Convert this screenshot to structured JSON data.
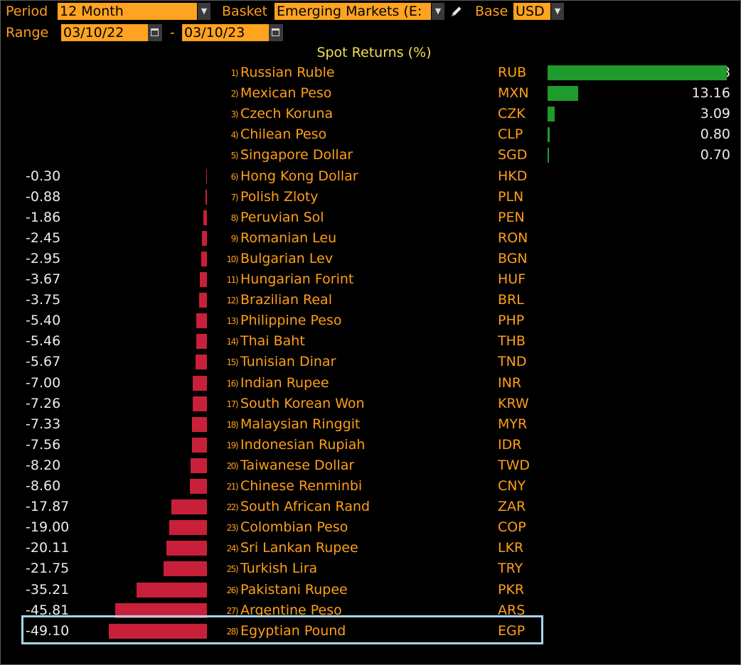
{
  "controls": {
    "period_label": "Period",
    "period_value": "12 Month",
    "basket_label": "Basket",
    "basket_value": "Emerging Markets (E:",
    "base_label": "Base",
    "base_value": "USD",
    "range_label": "Range",
    "range_start": "03/10/22",
    "range_separator": "-",
    "range_end": "03/10/23"
  },
  "chart_data": {
    "type": "bar",
    "orientation": "horizontal",
    "title": "Spot Returns (%)",
    "highlighted_code": "EGP",
    "xlim": [
      -49.1,
      76.28
    ],
    "rows": [
      {
        "rank": "1)",
        "name": "Russian Ruble",
        "code": "RUB",
        "value": 76.28
      },
      {
        "rank": "2)",
        "name": "Mexican Peso",
        "code": "MXN",
        "value": 13.16
      },
      {
        "rank": "3)",
        "name": "Czech Koruna",
        "code": "CZK",
        "value": 3.09
      },
      {
        "rank": "4)",
        "name": "Chilean Peso",
        "code": "CLP",
        "value": 0.8
      },
      {
        "rank": "5)",
        "name": "Singapore Dollar",
        "code": "SGD",
        "value": 0.7
      },
      {
        "rank": "6)",
        "name": "Hong Kong Dollar",
        "code": "HKD",
        "value": -0.3
      },
      {
        "rank": "7)",
        "name": "Polish Zloty",
        "code": "PLN",
        "value": -0.88
      },
      {
        "rank": "8)",
        "name": "Peruvian Sol",
        "code": "PEN",
        "value": -1.86
      },
      {
        "rank": "9)",
        "name": "Romanian Leu",
        "code": "RON",
        "value": -2.45
      },
      {
        "rank": "10)",
        "name": "Bulgarian Lev",
        "code": "BGN",
        "value": -2.95
      },
      {
        "rank": "11)",
        "name": "Hungarian Forint",
        "code": "HUF",
        "value": -3.67
      },
      {
        "rank": "12)",
        "name": "Brazilian Real",
        "code": "BRL",
        "value": -3.75
      },
      {
        "rank": "13)",
        "name": "Philippine Peso",
        "code": "PHP",
        "value": -5.4
      },
      {
        "rank": "14)",
        "name": "Thai Baht",
        "code": "THB",
        "value": -5.46
      },
      {
        "rank": "15)",
        "name": "Tunisian Dinar",
        "code": "TND",
        "value": -5.67
      },
      {
        "rank": "16)",
        "name": "Indian Rupee",
        "code": "INR",
        "value": -7.0
      },
      {
        "rank": "17)",
        "name": "South Korean Won",
        "code": "KRW",
        "value": -7.26
      },
      {
        "rank": "18)",
        "name": "Malaysian Ringgit",
        "code": "MYR",
        "value": -7.33
      },
      {
        "rank": "19)",
        "name": "Indonesian Rupiah",
        "code": "IDR",
        "value": -7.56
      },
      {
        "rank": "20)",
        "name": "Taiwanese Dollar",
        "code": "TWD",
        "value": -8.2
      },
      {
        "rank": "21)",
        "name": "Chinese Renminbi",
        "code": "CNY",
        "value": -8.6
      },
      {
        "rank": "22)",
        "name": "South African Rand",
        "code": "ZAR",
        "value": -17.87
      },
      {
        "rank": "23)",
        "name": "Colombian Peso",
        "code": "COP",
        "value": -19.0
      },
      {
        "rank": "24)",
        "name": "Sri Lankan Rupee",
        "code": "LKR",
        "value": -20.11
      },
      {
        "rank": "25)",
        "name": "Turkish Lira",
        "code": "TRY",
        "value": -21.75
      },
      {
        "rank": "26)",
        "name": "Pakistani Rupee",
        "code": "PKR",
        "value": -35.21
      },
      {
        "rank": "27)",
        "name": "Argentine Peso",
        "code": "ARS",
        "value": -45.81
      },
      {
        "rank": "28)",
        "name": "Egyptian Pound",
        "code": "EGP",
        "value": -49.1
      }
    ]
  },
  "colors": {
    "positive_bar": "#1f9a2c",
    "negative_bar": "#c8203a",
    "highlight_border": "#a6d6ec",
    "label_text": "#ff9f1a",
    "value_text": "#ececec",
    "field_background": "#ffa320"
  },
  "icons": {
    "dropdown": "chevron-down-icon",
    "calendar": "calendar-icon",
    "edit": "pencil-icon"
  }
}
